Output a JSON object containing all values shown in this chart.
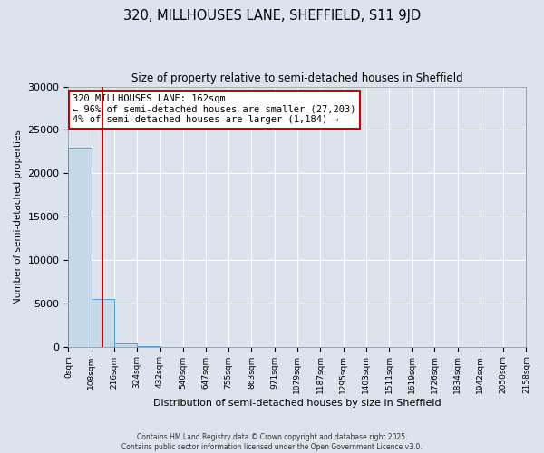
{
  "title": "320, MILLHOUSES LANE, SHEFFIELD, S11 9JD",
  "subtitle": "Size of property relative to semi-detached houses in Sheffield",
  "xlabel": "Distribution of semi-detached houses by size in Sheffield",
  "ylabel": "Number of semi-detached properties",
  "bin_edges": [
    0,
    108,
    216,
    324,
    432,
    540,
    647,
    755,
    863,
    971,
    1079,
    1187,
    1295,
    1403,
    1511,
    1619,
    1726,
    1834,
    1942,
    2050,
    2158
  ],
  "bin_labels": [
    "0sqm",
    "108sqm",
    "216sqm",
    "324sqm",
    "432sqm",
    "540sqm",
    "647sqm",
    "755sqm",
    "863sqm",
    "971sqm",
    "1079sqm",
    "1187sqm",
    "1295sqm",
    "1403sqm",
    "1511sqm",
    "1619sqm",
    "1726sqm",
    "1834sqm",
    "1942sqm",
    "2050sqm",
    "2158sqm"
  ],
  "bar_heights": [
    23000,
    5500,
    400,
    30,
    10,
    5,
    3,
    2,
    1,
    1,
    1,
    0,
    0,
    0,
    0,
    0,
    0,
    0,
    0,
    0
  ],
  "bar_color": "#c6d9e8",
  "bar_edge_color": "#5b9bd5",
  "property_size": 162,
  "red_line_color": "#cc0000",
  "annotation_line1": "320 MILLHOUSES LANE: 162sqm",
  "annotation_line2": "← 96% of semi-detached houses are smaller (27,203)",
  "annotation_line3": "4% of semi-detached houses are larger (1,184) →",
  "annotation_box_color": "#ffffff",
  "annotation_box_edge_color": "#cc0000",
  "ylim": [
    0,
    30000
  ],
  "yticks": [
    0,
    5000,
    10000,
    15000,
    20000,
    25000,
    30000
  ],
  "background_color": "#dce3ed",
  "grid_color": "#ffffff",
  "footer_text": "Contains HM Land Registry data © Crown copyright and database right 2025.\nContains public sector information licensed under the Open Government Licence v3.0.",
  "figsize": [
    6.0,
    5.0
  ],
  "dpi": 100
}
